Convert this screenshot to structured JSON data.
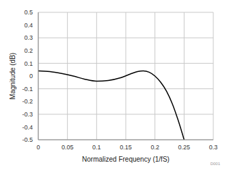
{
  "chart_data": {
    "type": "line",
    "x_label": "Normalized Frequency (1/fS)",
    "y_label": "Magnitude (dB)",
    "annotation": "D001",
    "x": [
      0,
      0.02,
      0.04,
      0.06,
      0.08,
      0.1,
      0.12,
      0.14,
      0.16,
      0.17,
      0.18,
      0.19,
      0.2,
      0.21,
      0.22,
      0.23,
      0.24,
      0.25
    ],
    "values": [
      0.04,
      0.035,
      0.02,
      0.0,
      -0.025,
      -0.04,
      -0.035,
      -0.015,
      0.02,
      0.035,
      0.04,
      0.03,
      0.0,
      -0.05,
      -0.12,
      -0.22,
      -0.35,
      -0.5
    ],
    "color": "#000000",
    "xlim": [
      0,
      0.3
    ],
    "xticks": [
      0,
      0.05,
      0.1,
      0.15,
      0.2,
      0.25,
      0.3
    ],
    "ylim": [
      -0.5,
      0.5
    ],
    "yticks": [
      -0.5,
      -0.4,
      -0.3,
      -0.2,
      -0.1,
      0,
      0.1,
      0.2,
      0.3,
      0.4,
      0.5
    ],
    "grid": true
  }
}
